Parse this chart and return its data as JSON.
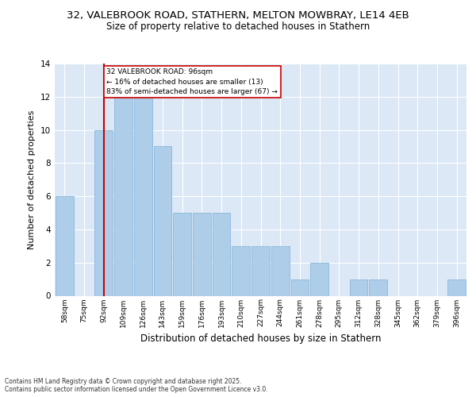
{
  "title1": "32, VALEBROOK ROAD, STATHERN, MELTON MOWBRAY, LE14 4EB",
  "title2": "Size of property relative to detached houses in Stathern",
  "xlabel": "Distribution of detached houses by size in Stathern",
  "ylabel": "Number of detached properties",
  "categories": [
    "58sqm",
    "75sqm",
    "92sqm",
    "109sqm",
    "126sqm",
    "143sqm",
    "159sqm",
    "176sqm",
    "193sqm",
    "210sqm",
    "227sqm",
    "244sqm",
    "261sqm",
    "278sqm",
    "295sqm",
    "312sqm",
    "328sqm",
    "345sqm",
    "362sqm",
    "379sqm",
    "396sqm"
  ],
  "values": [
    6,
    0,
    10,
    12,
    12,
    9,
    5,
    5,
    5,
    3,
    3,
    3,
    1,
    2,
    0,
    1,
    1,
    0,
    0,
    0,
    1
  ],
  "bar_color": "#aecde8",
  "bar_edge_color": "#89b8de",
  "vline_x": 2,
  "vline_color": "#cc0000",
  "annotation_text": "32 VALEBROOK ROAD: 96sqm\n← 16% of detached houses are smaller (13)\n83% of semi-detached houses are larger (67) →",
  "annotation_box_color": "#ffffff",
  "annotation_box_edge": "#cc0000",
  "ylim": [
    0,
    14
  ],
  "yticks": [
    0,
    2,
    4,
    6,
    8,
    10,
    12,
    14
  ],
  "background_color": "#dce8f5",
  "footer_text": "Contains HM Land Registry data © Crown copyright and database right 2025.\nContains public sector information licensed under the Open Government Licence v3.0.",
  "title1_fontsize": 9.5,
  "title2_fontsize": 8.5,
  "xlabel_fontsize": 8.5,
  "ylabel_fontsize": 8
}
